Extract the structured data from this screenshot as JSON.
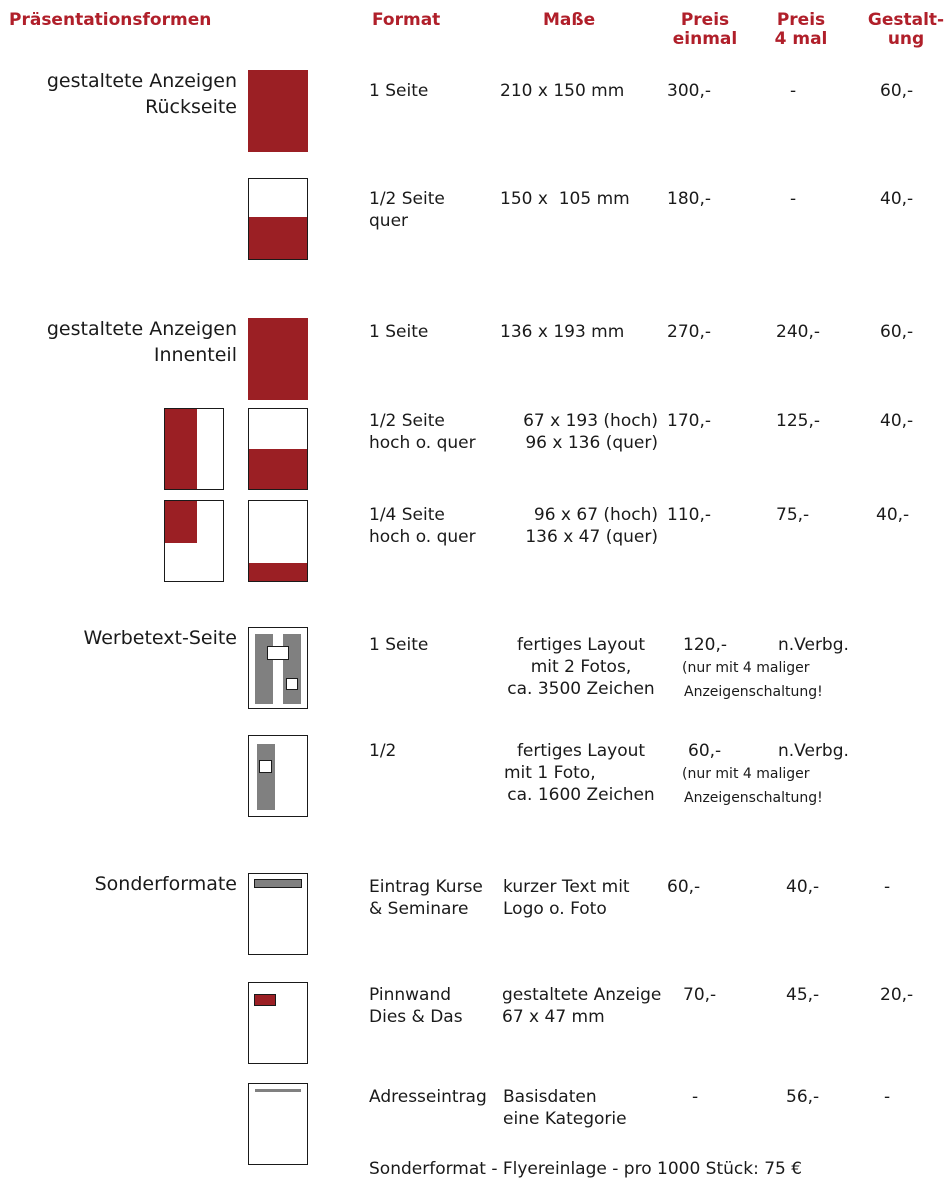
{
  "colors": {
    "accent": "#b01f2a",
    "fill": "#9b1f24",
    "grey": "#808080"
  },
  "header": {
    "col_forms": "Präsentationsformen",
    "col_format": "Format",
    "col_size": "Maße",
    "col_price1_l1": "Preis",
    "col_price1_l2": "einmal",
    "col_price4_l1": "Preis",
    "col_price4_l2": "4 mal",
    "col_design_l1": "Gestalt-",
    "col_design_l2": "ung"
  },
  "sections": {
    "s1_l1": "gestaltete Anzeigen",
    "s1_l2": "Rückseite",
    "s2_l1": "gestaltete Anzeigen",
    "s2_l2": "Innenteil",
    "s3": "Werbetext-Seite",
    "s4": "Sonderformate"
  },
  "rows": [
    {
      "f1": "1 Seite",
      "f2": "",
      "m1": "210 x 150 mm",
      "m2": "",
      "p1": "300,-",
      "p4": "-",
      "g": "60,-"
    },
    {
      "f1": "1/2 Seite",
      "f2": "quer",
      "m1": "150 x  105 mm",
      "m2": "",
      "p1": "180,-",
      "p4": "-",
      "g": "40,-"
    },
    {
      "f1": "1 Seite",
      "f2": "",
      "m1": "136 x 193 mm",
      "m2": "",
      "p1": "270,-",
      "p4": "240,-",
      "g": "60,-"
    },
    {
      "f1": "1/2 Seite",
      "f2": "hoch o. quer",
      "m1": "67 x 193 (hoch)",
      "m2": "96 x 136 (quer)",
      "p1": "170,-",
      "p4": "125,-",
      "g": "40,-"
    },
    {
      "f1": "1/4 Seite",
      "f2": "hoch o. quer",
      "m1": "96 x 67 (hoch)",
      "m2": "136 x 47 (quer)",
      "p1": "110,-",
      "p4": "75,-",
      "g": "40,-"
    },
    {
      "f1": "1 Seite",
      "m1": "fertiges Layout",
      "m2": "mit 2 Fotos,",
      "m3": "ca. 3500 Zeichen",
      "p1": "120,-",
      "p4": "n.Verbg.",
      "n1": "(nur mit 4 maliger",
      "n2": "Anzeigenschaltung!"
    },
    {
      "f1": "1/2",
      "m1": "fertiges Layout",
      "m2": "mit 1 Foto,",
      "m3": "ca. 1600 Zeichen",
      "p1": "60,-",
      "p4": "n.Verbg.",
      "n1": "(nur mit 4 maliger",
      "n2": "Anzeigenschaltung!"
    },
    {
      "f1": "Eintrag Kurse",
      "f2": "& Seminare",
      "m1": "kurzer Text mit",
      "m2": "Logo o. Foto",
      "p1": "60,-",
      "p4": "40,-",
      "g": "-"
    },
    {
      "f1": "Pinnwand",
      "f2": "Dies & Das",
      "m1": "gestaltete Anzeige",
      "m2": "67 x 47 mm",
      "p1": "70,-",
      "p4": "45,-",
      "g": "20,-"
    },
    {
      "f1": "Adresseintrag",
      "f2": "",
      "m1": "Basisdaten",
      "m2": "eine Kategorie",
      "p1": "-",
      "p4": "56,-",
      "g": "-"
    }
  ],
  "footer": "Sonderformat - Flyereinlage - pro 1000 Stück: 75 €"
}
